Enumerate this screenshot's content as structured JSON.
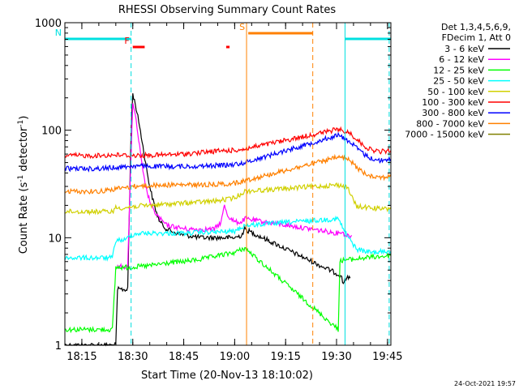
{
  "chart_data": {
    "type": "line",
    "title": "RHESSI Observing Summary Count Rates",
    "xlabel": "Start Time (20-Nov-13 18:10:02)",
    "ylabel_main": "Count Rate (s",
    "ylabel_sup1": "-1",
    "ylabel_mid": " detector",
    "ylabel_sup2": "-1",
    "ylabel_end": ")",
    "y_scale": "log",
    "ylim": [
      1,
      1000
    ],
    "x_range_min": [
      0,
      96
    ],
    "x_ticks": [
      {
        "m": 5,
        "label": "18:15"
      },
      {
        "m": 20,
        "label": "18:30"
      },
      {
        "m": 35,
        "label": "18:45"
      },
      {
        "m": 50,
        "label": "19:00"
      },
      {
        "m": 65,
        "label": "19:15"
      },
      {
        "m": 80,
        "label": "19:30"
      },
      {
        "m": 95,
        "label": "19:45"
      }
    ],
    "y_ticks": [
      {
        "v": 1,
        "label": "1"
      },
      {
        "v": 10,
        "label": "10"
      },
      {
        "v": 100,
        "label": "100"
      },
      {
        "v": 1000,
        "label": "1000"
      }
    ],
    "legend_header_1": "Det 1,3,4,5,6,9,",
    "legend_header_2": "FDecim 1, Att 0",
    "legend_position": "right",
    "timestamp": "24-Oct-2021 19:57",
    "night_gap_min": [
      52.5,
      80.5
    ],
    "flags": [
      {
        "label": "N",
        "color": "#00e0e0",
        "level_y": 48,
        "segments": [
          [
            0,
            19.5
          ],
          [
            82.5,
            96
          ]
        ]
      },
      {
        "label": "F",
        "color": "#ff0000",
        "level_y": 58,
        "segments": [
          [
            20,
            23.5
          ],
          [
            47.5,
            48.5
          ]
        ]
      },
      {
        "label": "S",
        "color": "#ff8000",
        "level_y": 41,
        "segments": [
          [
            54,
            73
          ]
        ]
      }
    ],
    "vlines": [
      {
        "m": 19.5,
        "color": "#00e0e0",
        "style": "dashed"
      },
      {
        "m": 53.5,
        "color": "#ff8000",
        "style": "solid"
      },
      {
        "m": 73,
        "color": "#ff8000",
        "style": "dashed"
      },
      {
        "m": 82.5,
        "color": "#00e0e0",
        "style": "solid"
      },
      {
        "m": 95.5,
        "color": "#00e0e0",
        "style": "dashed"
      }
    ],
    "series": [
      {
        "name": "3 - 6 keV",
        "color": "#000000",
        "points": [
          [
            0,
            1
          ],
          [
            15,
            1
          ],
          [
            15.5,
            3.3
          ],
          [
            18.5,
            3.3
          ],
          [
            19.5,
            100
          ],
          [
            20,
            220
          ],
          [
            21,
            160
          ],
          [
            22,
            110
          ],
          [
            23,
            70
          ],
          [
            24,
            45
          ],
          [
            25,
            30
          ],
          [
            26,
            22
          ],
          [
            27,
            17
          ],
          [
            28,
            14
          ],
          [
            30,
            12
          ],
          [
            33,
            11
          ],
          [
            36,
            10.5
          ],
          [
            40,
            10
          ],
          [
            45,
            10
          ],
          [
            48,
            10
          ],
          [
            50,
            10
          ],
          [
            52,
            10.5
          ],
          [
            53,
            12
          ],
          [
            81,
            4.5
          ],
          [
            81.3,
            4.5
          ],
          [
            82,
            3.7
          ],
          [
            82.5,
            4.2
          ],
          [
            84,
            4.2
          ],
          [
            84.5,
            null
          ]
        ]
      },
      {
        "name": "6 - 12 keV",
        "color": "#ff00ff",
        "points": [
          [
            15.5,
            5.4
          ],
          [
            18.5,
            5.4
          ],
          [
            19.5,
            60
          ],
          [
            20,
            185
          ],
          [
            21,
            120
          ],
          [
            22,
            70
          ],
          [
            23,
            40
          ],
          [
            24,
            28
          ],
          [
            25,
            22
          ],
          [
            26,
            18
          ],
          [
            28,
            15
          ],
          [
            30,
            13
          ],
          [
            33,
            12.5
          ],
          [
            36,
            12
          ],
          [
            40,
            12
          ],
          [
            44,
            12
          ],
          [
            46,
            14
          ],
          [
            47,
            20
          ],
          [
            48,
            16
          ],
          [
            50,
            14
          ],
          [
            52,
            14
          ],
          [
            53,
            15
          ],
          [
            80.5,
            11
          ],
          [
            81,
            11.5
          ],
          [
            83,
            10.5
          ],
          [
            84.5,
            10.5
          ],
          [
            84.8,
            null
          ]
        ]
      },
      {
        "name": "12 - 25 keV",
        "color": "#00ff00",
        "points": [
          [
            0,
            1.4
          ],
          [
            14,
            1.4
          ],
          [
            15,
            5.3
          ],
          [
            18,
            5.3
          ],
          [
            19,
            5.3
          ],
          [
            25,
            5.5
          ],
          [
            30,
            5.8
          ],
          [
            35,
            6
          ],
          [
            40,
            6.3
          ],
          [
            45,
            6.8
          ],
          [
            50,
            7.3
          ],
          [
            53,
            8
          ],
          [
            80.5,
            1.4
          ],
          [
            81,
            6
          ],
          [
            82,
            6.2
          ],
          [
            85,
            6.3
          ],
          [
            90,
            6.6
          ],
          [
            96,
            6.8
          ]
        ]
      },
      {
        "name": "25 - 50 keV",
        "color": "#00ffff",
        "points": [
          [
            0,
            6.5
          ],
          [
            14,
            6.5
          ],
          [
            15,
            9.5
          ],
          [
            18,
            9.5
          ],
          [
            19,
            10.5
          ],
          [
            22,
            11
          ],
          [
            26,
            11
          ],
          [
            30,
            11
          ],
          [
            35,
            11
          ],
          [
            40,
            11.2
          ],
          [
            45,
            11.3
          ],
          [
            50,
            11.5
          ],
          [
            53,
            13
          ],
          [
            80.5,
            15
          ],
          [
            81,
            14
          ],
          [
            82,
            12
          ],
          [
            84,
            9.5
          ],
          [
            86,
            7.8
          ],
          [
            90,
            7.3
          ],
          [
            96,
            7.5
          ]
        ]
      },
      {
        "name": "50 - 100 keV",
        "color": "#d0d000",
        "points": [
          [
            0,
            17.5
          ],
          [
            14,
            17.5
          ],
          [
            15,
            19
          ],
          [
            18,
            19
          ],
          [
            20,
            19.5
          ],
          [
            25,
            20
          ],
          [
            30,
            20.5
          ],
          [
            35,
            21
          ],
          [
            40,
            21.5
          ],
          [
            45,
            22
          ],
          [
            50,
            23.5
          ],
          [
            53,
            27
          ],
          [
            80.5,
            31
          ],
          [
            81,
            30.5
          ],
          [
            83,
            30
          ],
          [
            84,
            26
          ],
          [
            85,
            22
          ],
          [
            86,
            19.5
          ],
          [
            90,
            19
          ],
          [
            93,
            18.5
          ],
          [
            96,
            18.5
          ]
        ]
      },
      {
        "name": "100 - 300 keV",
        "color": "#ff0000",
        "points": [
          [
            0,
            58
          ],
          [
            10,
            58
          ],
          [
            15,
            59
          ],
          [
            20,
            58
          ],
          [
            25,
            58.5
          ],
          [
            30,
            59
          ],
          [
            35,
            60
          ],
          [
            40,
            62
          ],
          [
            45,
            64
          ],
          [
            50,
            65
          ],
          [
            53,
            67
          ],
          [
            80.5,
            102
          ],
          [
            82,
            98
          ],
          [
            84,
            94
          ],
          [
            86,
            82
          ],
          [
            88,
            72
          ],
          [
            90,
            66
          ],
          [
            93,
            63
          ],
          [
            96,
            65
          ]
        ]
      },
      {
        "name": "300 - 800 keV",
        "color": "#0000ff",
        "points": [
          [
            0,
            44
          ],
          [
            10,
            44
          ],
          [
            15,
            45
          ],
          [
            20,
            46.5
          ],
          [
            25,
            46
          ],
          [
            30,
            46
          ],
          [
            35,
            46
          ],
          [
            40,
            46.5
          ],
          [
            45,
            47
          ],
          [
            50,
            48
          ],
          [
            53,
            50
          ],
          [
            80.5,
            90
          ],
          [
            82,
            85
          ],
          [
            84,
            78
          ],
          [
            86,
            68
          ],
          [
            88,
            60
          ],
          [
            90,
            55
          ],
          [
            93,
            52
          ],
          [
            96,
            54
          ]
        ]
      },
      {
        "name": "800 - 7000 keV",
        "color": "#ff8000",
        "points": [
          [
            0,
            27
          ],
          [
            10,
            27
          ],
          [
            15,
            28.5
          ],
          [
            20,
            30
          ],
          [
            25,
            30.5
          ],
          [
            30,
            31
          ],
          [
            35,
            31
          ],
          [
            40,
            31
          ],
          [
            45,
            31.5
          ],
          [
            50,
            32
          ],
          [
            53,
            34
          ],
          [
            80.5,
            56
          ],
          [
            82,
            55
          ],
          [
            84,
            52
          ],
          [
            86,
            45
          ],
          [
            88,
            40
          ],
          [
            90,
            38
          ],
          [
            93,
            36.5
          ],
          [
            96,
            37
          ]
        ]
      },
      {
        "name": "7000 - 15000 keV",
        "color": "#808000",
        "points": []
      }
    ]
  }
}
